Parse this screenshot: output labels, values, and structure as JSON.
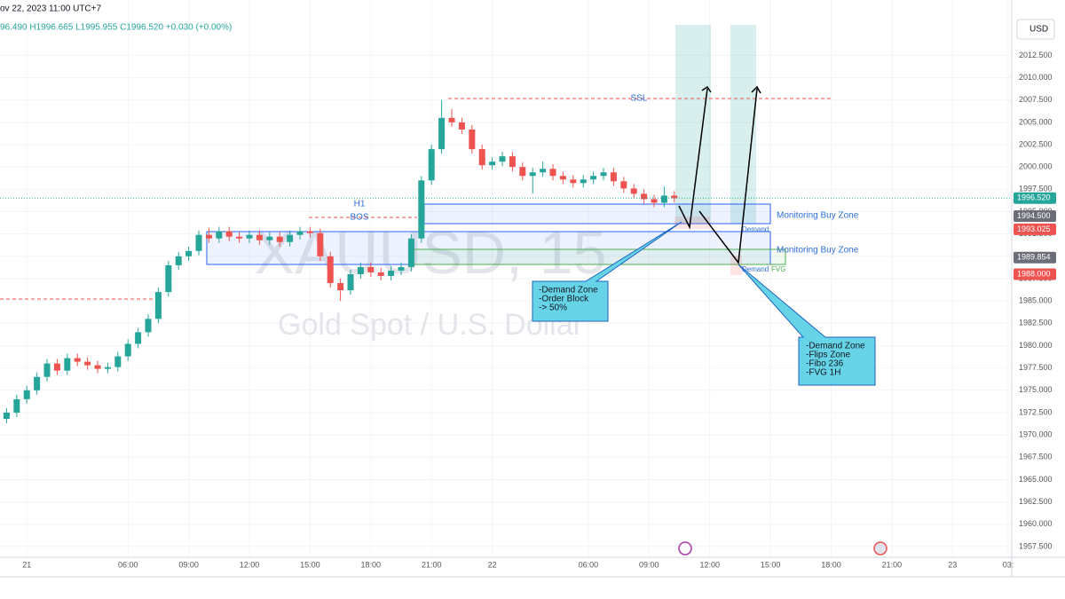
{
  "chart_data": {
    "type": "candlestick",
    "header": "ov 22, 2023 11:00 UTC+7",
    "ohlc_line": "96.490  H1996.665  L1995.955  C1996.520  +0.030 (+0.00%)",
    "currency": "USD",
    "watermark": "XAUUSD, 15",
    "watermark_subtitle": "Gold Spot / U.S. Dollar",
    "up_color": "#26a69a",
    "down_color": "#ef5350",
    "x": [
      -4,
      -2,
      0,
      2,
      4,
      6,
      8,
      10,
      12,
      14,
      16,
      18,
      20,
      22,
      24,
      26,
      28,
      30,
      32,
      34,
      36,
      38,
      40,
      42,
      44,
      46,
      48,
      50,
      52,
      54,
      56,
      58,
      60,
      62,
      64,
      66,
      68,
      70,
      72,
      74,
      76,
      78,
      80,
      82,
      84,
      86,
      88,
      90,
      92,
      94,
      96,
      98,
      100,
      102,
      104,
      106,
      108,
      110,
      112,
      114,
      116,
      118,
      120,
      122,
      124,
      126,
      128
    ],
    "open": [
      1971.8,
      1972.5,
      1974.0,
      1975.0,
      1976.5,
      1978.0,
      1977.2,
      1978.6,
      1978.2,
      1977.8,
      1977.4,
      1977.6,
      1978.8,
      1980.2,
      1981.5,
      1983.0,
      1986.0,
      1989.0,
      1990.0,
      1990.6,
      1992.4,
      1992.0,
      1992.8,
      1992.2,
      1992.0,
      1992.4,
      1991.8,
      1992.2,
      1991.6,
      1992.4,
      1992.8,
      1992.6,
      1990.0,
      1987.0,
      1986.2,
      1988.0,
      1988.8,
      1988.2,
      1987.8,
      1988.4,
      1988.8,
      1992.0,
      1998.5,
      2002.0,
      2005.5,
      2005.0,
      2004.2,
      2002.0,
      2000.2,
      2000.6,
      2001.2,
      2000.0,
      1999.0,
      1999.4,
      1999.8,
      1999.0,
      1998.6,
      1998.2,
      1998.6,
      1999.0,
      1999.4,
      1998.4,
      1997.6,
      1997.0,
      1996.4,
      1996.0,
      1996.8
    ],
    "high": [
      1973.0,
      1974.5,
      1975.5,
      1977.0,
      1978.5,
      1978.5,
      1979.1,
      1979.1,
      1978.7,
      1978.3,
      1978.1,
      1979.3,
      1980.7,
      1982.0,
      1983.5,
      1986.5,
      1989.5,
      1990.5,
      1991.1,
      1992.9,
      1993.2,
      1993.3,
      1993.3,
      1992.7,
      1992.9,
      1992.9,
      1992.7,
      1992.7,
      1992.9,
      1993.3,
      1993.3,
      1993.1,
      1990.5,
      1987.5,
      1988.5,
      1989.3,
      1989.3,
      1988.7,
      1988.9,
      1989.3,
      1992.5,
      1999.0,
      2002.5,
      2007.5,
      2006.5,
      2005.5,
      2004.7,
      2002.5,
      2001.1,
      2001.7,
      2001.7,
      2000.5,
      1999.9,
      2000.6,
      2000.3,
      1999.5,
      1999.1,
      1999.1,
      1999.5,
      1999.9,
      1999.9,
      1998.9,
      1998.1,
      1997.5,
      1996.9,
      1997.8,
      1997.3
    ],
    "low": [
      1971.3,
      1972.0,
      1973.5,
      1974.5,
      1976.0,
      1976.7,
      1976.7,
      1977.7,
      1977.3,
      1976.9,
      1976.9,
      1977.1,
      1978.3,
      1979.7,
      1981.0,
      1982.5,
      1985.5,
      1988.5,
      1989.5,
      1990.1,
      1991.5,
      1991.5,
      1991.7,
      1991.5,
      1991.5,
      1991.3,
      1991.3,
      1991.1,
      1991.1,
      1991.9,
      1992.1,
      1989.5,
      1986.5,
      1985.0,
      1985.7,
      1987.5,
      1987.7,
      1987.3,
      1987.3,
      1987.9,
      1988.3,
      1991.5,
      1998.0,
      2001.5,
      2004.5,
      2003.7,
      2001.5,
      1999.7,
      1999.7,
      2000.1,
      1999.5,
      1998.5,
      1997.0,
      1998.9,
      1998.5,
      1998.1,
      1997.7,
      1997.7,
      1998.1,
      1998.5,
      1997.9,
      1997.1,
      1996.5,
      1995.9,
      1995.5,
      1995.5,
      1996.0
    ],
    "close": [
      1972.5,
      1974.0,
      1975.0,
      1976.5,
      1978.0,
      1977.2,
      1978.6,
      1978.2,
      1977.8,
      1977.4,
      1977.6,
      1978.8,
      1980.2,
      1981.5,
      1983.0,
      1986.0,
      1989.0,
      1990.0,
      1990.6,
      1992.4,
      1992.0,
      1992.8,
      1992.2,
      1992.0,
      1992.4,
      1991.8,
      1992.2,
      1991.6,
      1992.4,
      1992.8,
      1992.6,
      1990.0,
      1987.0,
      1986.2,
      1988.0,
      1988.8,
      1988.2,
      1987.8,
      1988.4,
      1988.8,
      1992.0,
      1998.5,
      2002.0,
      2005.5,
      2005.0,
      2004.2,
      2002.0,
      2000.2,
      2000.6,
      2001.2,
      2000.0,
      1999.0,
      1999.4,
      1999.8,
      1999.0,
      1998.6,
      1998.2,
      1998.6,
      1999.0,
      1999.4,
      1998.4,
      1997.6,
      1997.0,
      1996.4,
      1996.0,
      1996.8,
      1996.5
    ],
    "xlim": [
      -5.3,
      194.7
    ],
    "xticks": [
      {
        "value": 0,
        "label": "21"
      },
      {
        "value": 20,
        "label": "06:00"
      },
      {
        "value": 32,
        "label": "09:00"
      },
      {
        "value": 44,
        "label": "12:00"
      },
      {
        "value": 56,
        "label": "15:00"
      },
      {
        "value": 68,
        "label": "18:00"
      },
      {
        "value": 80,
        "label": "21:00"
      },
      {
        "value": 92,
        "label": "22"
      },
      {
        "value": 111,
        "label": "06:00"
      },
      {
        "value": 123,
        "label": "09:00"
      },
      {
        "value": 135,
        "label": "12:00"
      },
      {
        "value": 147,
        "label": "15:00"
      },
      {
        "value": 159,
        "label": "18:00"
      },
      {
        "value": 171,
        "label": "21:00"
      },
      {
        "value": 183,
        "label": "23"
      },
      {
        "value": 194,
        "label": "03:"
      }
    ],
    "ylim": [
      1956.3,
      2018.7
    ],
    "yticks": [
      {
        "value": 1957.5,
        "label": "1957.500"
      },
      {
        "value": 1960,
        "label": "1960.000"
      },
      {
        "value": 1962.5,
        "label": "1962.500"
      },
      {
        "value": 1965,
        "label": "1965.000"
      },
      {
        "value": 1967.5,
        "label": "1967.500"
      },
      {
        "value": 1970,
        "label": "1970.000"
      },
      {
        "value": 1972.5,
        "label": "1972.500"
      },
      {
        "value": 1975,
        "label": "1975.000"
      },
      {
        "value": 1977.5,
        "label": "1977.500"
      },
      {
        "value": 1980,
        "label": "1980.000"
      },
      {
        "value": 1982.5,
        "label": "1982.500"
      },
      {
        "value": 1985,
        "label": "1985.000"
      },
      {
        "value": 1987.5,
        "label": "1987.500"
      },
      {
        "value": 1990,
        "label": "1990.000"
      },
      {
        "value": 1992.5,
        "label": "1992.500"
      },
      {
        "value": 1995,
        "label": "1995.000"
      },
      {
        "value": 1997.5,
        "label": "1997.500"
      },
      {
        "value": 2000,
        "label": "2000.000"
      },
      {
        "value": 2002.5,
        "label": "2002.500"
      },
      {
        "value": 2005,
        "label": "2005.000"
      },
      {
        "value": 2007.5,
        "label": "2007.500"
      },
      {
        "value": 2010,
        "label": "2010.000"
      },
      {
        "value": 2012.5,
        "label": "2012.500"
      }
    ],
    "price_labels": [
      {
        "value": 1996.52,
        "label": "1996.520",
        "color": "#26a69a"
      },
      {
        "value": 1994.5,
        "label": "1994.500",
        "color": "#6b6e78"
      },
      {
        "value": 1993.025,
        "label": "1993.025",
        "color": "#ef5350"
      },
      {
        "value": 1989.854,
        "label": "1989.854",
        "color": "#6b6e78"
      },
      {
        "value": 1988,
        "label": "1988.000",
        "color": "#ef5350"
      }
    ],
    "annotations": {
      "h1": "H1",
      "bos": "BOS",
      "ssl": "SSL",
      "zone_1": "Monitoring Buy Zone",
      "zone_2": "Monitoring Buy Zone",
      "demand_1": "Demand",
      "demand_2": "Demand",
      "fvg": "FVG",
      "callout_1": [
        "-Demand Zone",
        "-Order Block",
        "-> 50%"
      ],
      "callout_2": [
        "-Demand Zone",
        "-Flips Zone",
        "-Fibo 236",
        "-FVG 1H"
      ]
    }
  }
}
